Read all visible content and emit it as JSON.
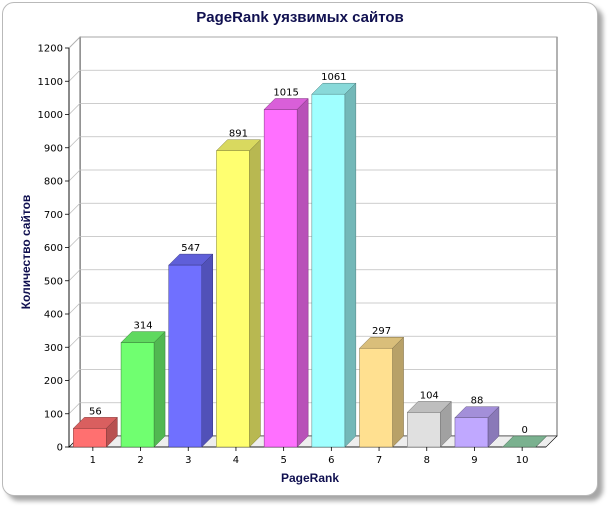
{
  "chart_data": {
    "type": "bar",
    "title": "PageRank уязвимых сайтов",
    "xlabel": "PageRank",
    "ylabel": "Количество сайтов",
    "categories": [
      "1",
      "2",
      "3",
      "4",
      "5",
      "6",
      "7",
      "8",
      "9",
      "10"
    ],
    "values": [
      56,
      314,
      547,
      891,
      1015,
      1061,
      297,
      104,
      88,
      0
    ],
    "data_labels": [
      "56",
      "314",
      "547",
      "891",
      "1015",
      "1061",
      "297",
      "104",
      "88",
      "0"
    ],
    "ylim": [
      0,
      1200
    ],
    "yticks": [
      "0",
      "100",
      "200",
      "300",
      "400",
      "500",
      "600",
      "700",
      "800",
      "900",
      "1000",
      "1100",
      "1200"
    ],
    "grid": true,
    "colors": [
      "#ff7070",
      "#70ff70",
      "#7070ff",
      "#ffff70",
      "#ff70ff",
      "#a0ffff",
      "#ffe090",
      "#e0e0e0",
      "#c0a8ff",
      "#90d0a8"
    ]
  }
}
